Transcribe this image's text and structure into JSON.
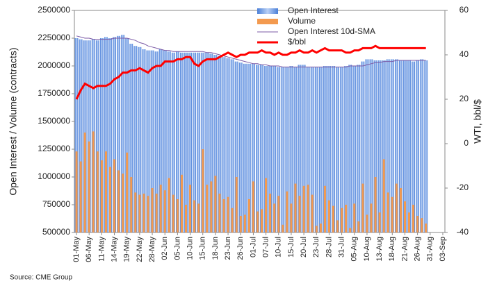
{
  "chart_data": {
    "type": "bar",
    "y_label": "Open Interest / Volume (contracts)",
    "y2_label": "WTI, bbl/$",
    "source": "Source: CME Group",
    "categories": [
      "01-May",
      null,
      null,
      "06-May",
      null,
      null,
      "11-May",
      null,
      null,
      "14-May",
      null,
      null,
      "19-May",
      null,
      null,
      "22-May",
      null,
      null,
      "28-May",
      null,
      null,
      "02-Jun",
      null,
      null,
      "05-Jun",
      null,
      null,
      "10-Jun",
      null,
      null,
      "15-Jun",
      null,
      null,
      "18-Jun",
      null,
      null,
      "23-Jun",
      null,
      null,
      "26-Jun",
      null,
      null,
      "01-Jul",
      null,
      null,
      "07-Jul",
      null,
      null,
      "10-Jul",
      null,
      null,
      "15-Jul",
      null,
      null,
      "20-Jul",
      null,
      null,
      "23-Jul",
      null,
      null,
      "28-Jul",
      null,
      null,
      "31-Jul",
      null,
      null,
      "05-Aug",
      null,
      null,
      "10-Aug",
      null,
      null,
      "13-Aug",
      null,
      null,
      "18-Aug",
      null,
      null,
      "21-Aug",
      null,
      null,
      "26-Aug",
      null,
      null,
      "31-Aug",
      null,
      null,
      "03-Sep"
    ],
    "series": [
      {
        "name": "Open Interest",
        "type": "bar",
        "color": "#6f9fe8",
        "values": [
          2250000,
          2240000,
          2230000,
          2230000,
          2240000,
          2230000,
          2250000,
          2260000,
          2250000,
          2260000,
          2270000,
          2280000,
          2250000,
          2200000,
          2180000,
          2170000,
          2150000,
          2140000,
          2140000,
          2130000,
          2150000,
          2140000,
          2130000,
          2120000,
          2130000,
          2120000,
          2120000,
          2120000,
          2120000,
          2120000,
          2120000,
          2120000,
          2110000,
          2100000,
          2090000,
          2080000,
          2070000,
          2060000,
          2040000,
          2030000,
          2020000,
          2020000,
          2020000,
          2010000,
          2010000,
          2000000,
          2000000,
          2000000,
          1990000,
          1990000,
          1990000,
          2000000,
          1990000,
          2010000,
          2010000,
          1990000,
          1990000,
          1990000,
          1990000,
          2000000,
          2000000,
          2000000,
          1990000,
          1990000,
          2000000,
          2010000,
          2000000,
          2010000,
          2040000,
          2060000,
          2060000,
          2050000,
          2050000,
          2050000,
          2060000,
          2060000,
          2060000,
          2050000,
          2050000,
          2050000,
          2040000,
          2050000,
          2060000,
          2050000,
          null,
          null,
          null,
          null
        ]
      },
      {
        "name": "Volume",
        "type": "bar",
        "color": "#f39a4f",
        "values": [
          1230000,
          1140000,
          1400000,
          1320000,
          1410000,
          1230000,
          1150000,
          1230000,
          1090000,
          1160000,
          1060000,
          1030000,
          1220000,
          1000000,
          860000,
          840000,
          850000,
          830000,
          900000,
          850000,
          930000,
          880000,
          990000,
          840000,
          800000,
          1020000,
          750000,
          930000,
          790000,
          760000,
          1250000,
          930000,
          960000,
          1010000,
          850000,
          800000,
          820000,
          720000,
          1000000,
          650000,
          660000,
          800000,
          960000,
          690000,
          710000,
          990000,
          850000,
          760000,
          830000,
          570000,
          870000,
          760000,
          940000,
          830000,
          920000,
          930000,
          840000,
          560000,
          580000,
          920000,
          790000,
          740000,
          610000,
          720000,
          750000,
          540000,
          760000,
          600000,
          940000,
          660000,
          760000,
          1000000,
          680000,
          1160000,
          860000,
          820000,
          940000,
          900000,
          780000,
          680000,
          750000,
          650000,
          630000,
          580000,
          null,
          null,
          null,
          null
        ]
      },
      {
        "name": "Open Interest 10d-SMA",
        "type": "line",
        "color": "#7b5aa6",
        "values": [
          2270000,
          2260000,
          2250000,
          2250000,
          2240000,
          2240000,
          2240000,
          2240000,
          2240000,
          2250000,
          2250000,
          2250000,
          2250000,
          2240000,
          2230000,
          2210000,
          2200000,
          2180000,
          2170000,
          2160000,
          2150000,
          2140000,
          2140000,
          2130000,
          2130000,
          2130000,
          2130000,
          2130000,
          2130000,
          2130000,
          2130000,
          2120000,
          2120000,
          2110000,
          2100000,
          2090000,
          2080000,
          2070000,
          2060000,
          2050000,
          2040000,
          2030000,
          2020000,
          2020000,
          2010000,
          2010000,
          2000000,
          2000000,
          2000000,
          1990000,
          1990000,
          1990000,
          1990000,
          1990000,
          1990000,
          1990000,
          1990000,
          1990000,
          1990000,
          1990000,
          1990000,
          1990000,
          1990000,
          1990000,
          1990000,
          2000000,
          2000000,
          2000000,
          2000000,
          2010000,
          2020000,
          2030000,
          2030000,
          2040000,
          2040000,
          2040000,
          2050000,
          2050000,
          2050000,
          2050000,
          2050000,
          2050000,
          2050000,
          2050000,
          null,
          null,
          null,
          null
        ]
      },
      {
        "name": "$/bbl",
        "type": "line",
        "axis": "y2",
        "color": "#ff0000",
        "values": [
          20,
          24,
          27,
          26,
          25,
          26,
          26,
          26,
          27,
          29,
          30,
          32,
          32,
          33,
          33,
          34,
          33,
          32,
          34,
          35,
          35,
          37,
          37,
          37,
          38,
          38,
          39,
          39,
          36,
          35,
          37,
          38,
          38,
          38,
          39,
          40,
          41,
          40,
          39,
          40,
          40,
          41,
          41,
          41,
          42,
          41,
          41,
          40,
          41,
          40,
          40,
          41,
          41,
          42,
          41,
          41,
          42,
          41,
          42,
          43,
          42,
          42,
          42,
          42,
          41,
          41,
          42,
          42,
          43,
          43,
          43,
          44,
          43,
          43,
          43,
          43,
          43,
          43,
          43,
          43,
          43,
          43,
          43,
          43,
          null,
          null,
          null,
          null
        ]
      }
    ],
    "ylim": [
      500000,
      2500000
    ],
    "yticks": [
      500000,
      750000,
      1000000,
      1250000,
      1500000,
      1750000,
      2000000,
      2250000,
      2500000
    ],
    "y2lim": [
      -40,
      60
    ],
    "y2ticks": [
      -40,
      -20,
      0,
      20,
      40,
      60
    ],
    "legend": "top"
  }
}
